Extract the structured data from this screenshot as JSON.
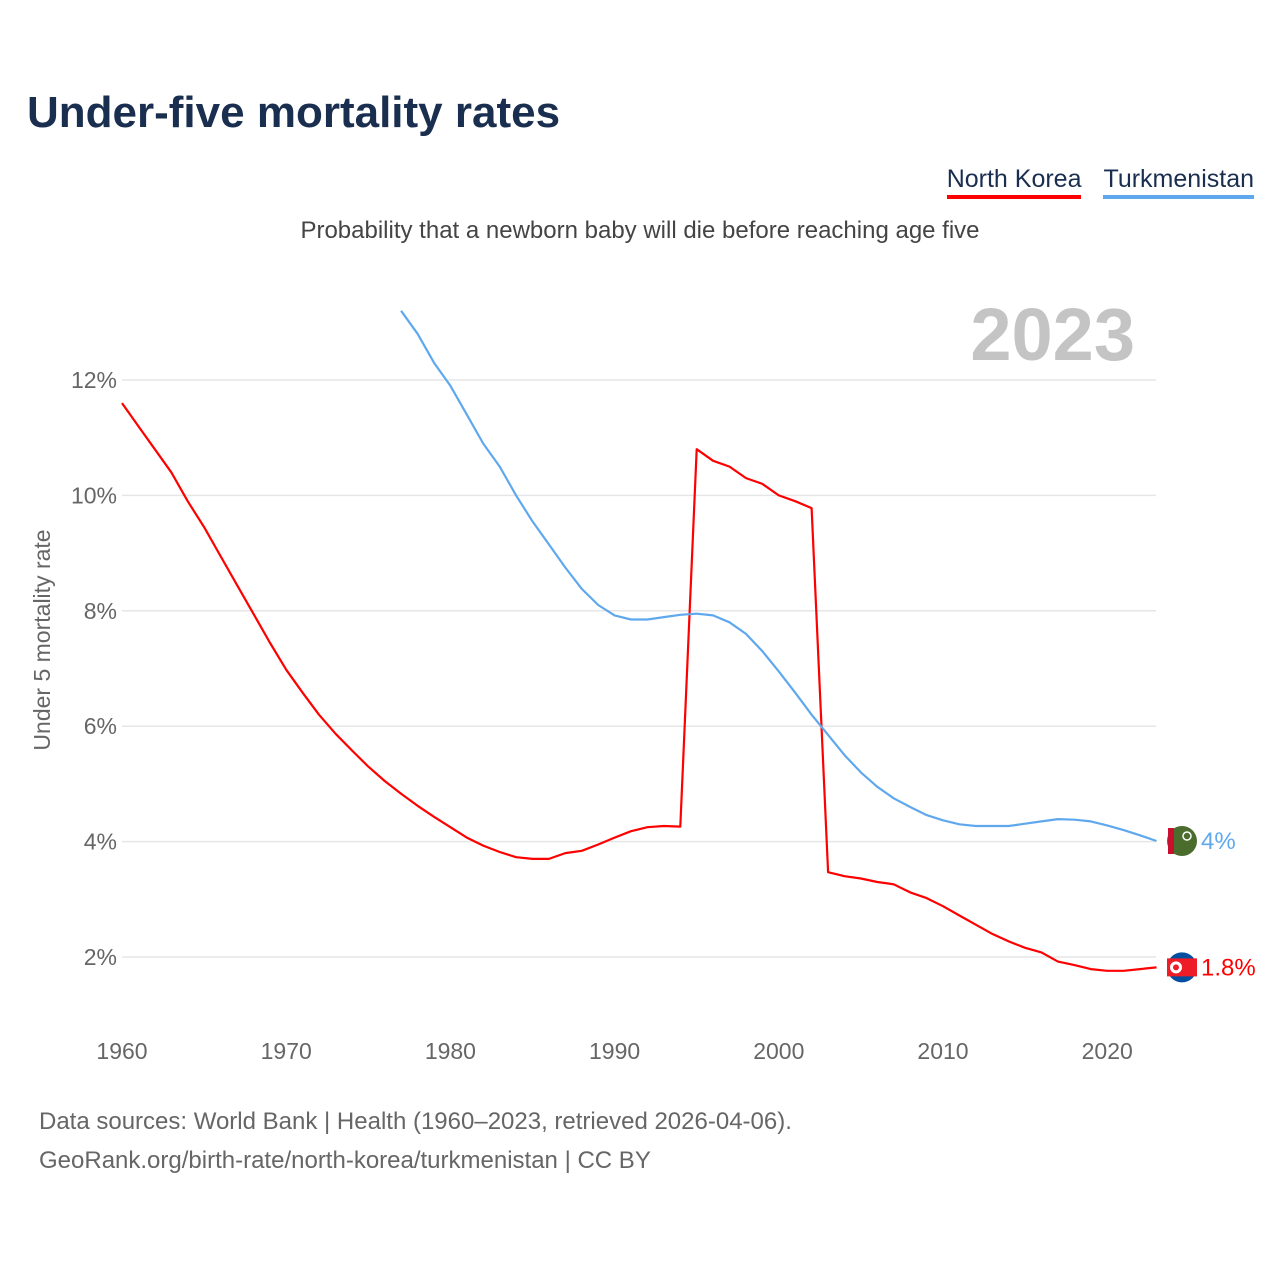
{
  "title": "Under-five mortality rates",
  "subtitle": "Probability that a newborn baby will die before reaching age five",
  "year_watermark": "2023",
  "source_line1": "Data sources: World Bank | Health (1960–2023, retrieved 2026-04-06).",
  "source_line2": "GeoRank.org/birth-rate/north-korea/turkmenistan | CC BY",
  "chart_data": {
    "type": "line",
    "title": "Under-five mortality rates",
    "ylabel": "Under 5 mortality rate",
    "xlabel": "",
    "xlim": [
      1960,
      2023
    ],
    "ylim": [
      1,
      13.5
    ],
    "x_ticks": [
      1960,
      1970,
      1980,
      1990,
      2000,
      2010,
      2020
    ],
    "y_ticks": [
      {
        "v": 2,
        "label": "2%"
      },
      {
        "v": 4,
        "label": "4%"
      },
      {
        "v": 6,
        "label": "6%"
      },
      {
        "v": 8,
        "label": "8%"
      },
      {
        "v": 10,
        "label": "10%"
      },
      {
        "v": 12,
        "label": "12%"
      }
    ],
    "grid": true,
    "legend_position": "top-right",
    "series": [
      {
        "name": "North Korea",
        "color": "#ff0000",
        "flag": "north-korea-flag-icon",
        "end_label": "1.8%",
        "start_year": 1960,
        "values": [
          11.6,
          11.2,
          10.8,
          10.4,
          9.9,
          9.45,
          8.95,
          8.45,
          7.95,
          7.45,
          6.98,
          6.58,
          6.2,
          5.87,
          5.58,
          5.3,
          5.05,
          4.83,
          4.62,
          4.43,
          4.25,
          4.07,
          3.93,
          3.82,
          3.73,
          3.7,
          3.7,
          3.8,
          3.84,
          3.95,
          4.07,
          4.18,
          4.25,
          4.27,
          4.26,
          10.8,
          10.6,
          10.5,
          10.3,
          10.2,
          10.0,
          9.9,
          9.78,
          3.47,
          3.4,
          3.36,
          3.3,
          3.26,
          3.12,
          3.02,
          2.88,
          2.72,
          2.56,
          2.4,
          2.27,
          2.16,
          2.08,
          1.92,
          1.86,
          1.79,
          1.76,
          1.76,
          1.79,
          1.82
        ]
      },
      {
        "name": "Turkmenistan",
        "color": "#5fa8ee",
        "flag": "turkmenistan-flag-icon",
        "end_label": "4%",
        "start_year": 1977,
        "values": [
          13.2,
          12.8,
          12.3,
          11.9,
          11.4,
          10.9,
          10.5,
          10.0,
          9.55,
          9.15,
          8.75,
          8.38,
          8.1,
          7.92,
          7.85,
          7.85,
          7.89,
          7.93,
          7.95,
          7.92,
          7.8,
          7.6,
          7.3,
          6.95,
          6.58,
          6.2,
          5.85,
          5.5,
          5.2,
          4.95,
          4.75,
          4.6,
          4.46,
          4.37,
          4.3,
          4.27,
          4.27,
          4.27,
          4.31,
          4.35,
          4.39,
          4.38,
          4.35,
          4.28,
          4.2,
          4.11,
          4.01
        ]
      }
    ]
  }
}
